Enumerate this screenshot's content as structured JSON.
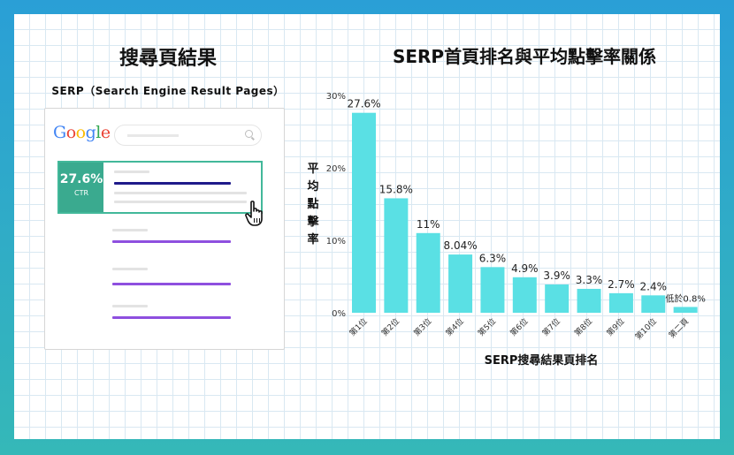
{
  "left_panel": {
    "title": "搜尋頁結果",
    "subtitle": "SERP（Search Engine Result Pages）",
    "logo": "Google",
    "logo_colors": [
      "#4285F4",
      "#EA4335",
      "#FBBC05",
      "#4285F4",
      "#34A853",
      "#EA4335"
    ],
    "top_result_ctr": "27.6%",
    "top_result_ctr_label": "CTR",
    "accent_color": "#3aaa8f",
    "link_color_top": "#1f1a8a",
    "link_color": "#8e4fdf"
  },
  "chart_data": {
    "type": "bar",
    "title": "SERP首頁排名與平均點擊率關係",
    "xlabel": "SERP搜尋結果頁排名",
    "ylabel": "平均點擊率",
    "categories": [
      "第1位",
      "第2位",
      "第3位",
      "第4位",
      "第5位",
      "第6位",
      "第7位",
      "第8位",
      "第9位",
      "第10位",
      "第二頁"
    ],
    "values": [
      27.6,
      15.8,
      11,
      8.04,
      6.3,
      4.9,
      3.9,
      3.3,
      2.7,
      2.4,
      0.8
    ],
    "data_labels": [
      "27.6%",
      "15.8%",
      "11%",
      "8.04%",
      "6.3%",
      "4.9%",
      "3.9%",
      "3.3%",
      "2.7%",
      "2.4%",
      "低於0.8%"
    ],
    "ylim": [
      0,
      30
    ],
    "yticks": [
      0,
      10,
      20,
      30
    ],
    "ytick_labels": [
      "0%",
      "10%",
      "20%",
      "30%"
    ],
    "bar_color": "#5ae0e4",
    "grid": true
  }
}
